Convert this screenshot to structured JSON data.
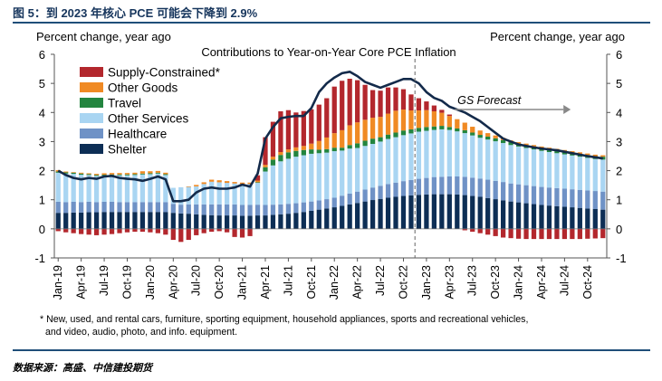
{
  "figure": {
    "title": "图 5：到 2023 年核心 PCE 可能会下降到 2.9%",
    "source": "数据来源：高盛、中信建投期货"
  },
  "colors": {
    "shelter": "#0d2e55",
    "healthcare": "#6f92c6",
    "other_services": "#a9d5f2",
    "travel": "#23853f",
    "other_goods": "#f08a24",
    "supply_constrained": "#b3272d",
    "line": "#132a4a",
    "rule": "#1f4e79"
  },
  "chart_data": {
    "type": "bar",
    "title": "Contributions to Year-on-Year Core PCE Inflation",
    "ylabel_left": "Percent change, year ago",
    "ylabel_right": "Percent change, year ago",
    "ylim": [
      -1,
      6
    ],
    "yticks": [
      "-1",
      "0",
      "1",
      "2",
      "3",
      "4",
      "5",
      "6"
    ],
    "ytick_values": [
      -1,
      0,
      1,
      2,
      3,
      4,
      5,
      6
    ],
    "xtick_labels": [
      "Jan-19",
      "Apr-19",
      "Jul-19",
      "Oct-19",
      "Jan-20",
      "Apr-20",
      "Jul-20",
      "Oct-20",
      "Jan-21",
      "Apr-21",
      "Jul-21",
      "Oct-21",
      "Jan-22",
      "Apr-22",
      "Jul-22",
      "Oct-22",
      "Jan-23",
      "Apr-23",
      "Jul-23",
      "Oct-23",
      "Jan-24",
      "Apr-24",
      "Jul-24",
      "Oct-24"
    ],
    "months": [
      "Jan-19",
      "Feb-19",
      "Mar-19",
      "Apr-19",
      "May-19",
      "Jun-19",
      "Jul-19",
      "Aug-19",
      "Sep-19",
      "Oct-19",
      "Nov-19",
      "Dec-19",
      "Jan-20",
      "Feb-20",
      "Mar-20",
      "Apr-20",
      "May-20",
      "Jun-20",
      "Jul-20",
      "Aug-20",
      "Sep-20",
      "Oct-20",
      "Nov-20",
      "Dec-20",
      "Jan-21",
      "Feb-21",
      "Mar-21",
      "Apr-21",
      "May-21",
      "Jun-21",
      "Jul-21",
      "Aug-21",
      "Sep-21",
      "Oct-21",
      "Nov-21",
      "Dec-21",
      "Jan-22",
      "Feb-22",
      "Mar-22",
      "Apr-22",
      "May-22",
      "Jun-22",
      "Jul-22",
      "Aug-22",
      "Sep-22",
      "Oct-22",
      "Nov-22",
      "Dec-22",
      "Jan-23",
      "Feb-23",
      "Mar-23",
      "Apr-23",
      "May-23",
      "Jun-23",
      "Jul-23",
      "Aug-23",
      "Sep-23",
      "Oct-23",
      "Nov-23",
      "Dec-23",
      "Jan-24",
      "Feb-24",
      "Mar-24",
      "Apr-24",
      "May-24",
      "Jun-24",
      "Jul-24",
      "Aug-24",
      "Sep-24",
      "Oct-24",
      "Nov-24",
      "Dec-24"
    ],
    "series": [
      {
        "name": "Shelter",
        "key": "shelter",
        "values": [
          0.55,
          0.55,
          0.56,
          0.56,
          0.57,
          0.57,
          0.58,
          0.58,
          0.58,
          0.58,
          0.58,
          0.58,
          0.58,
          0.58,
          0.58,
          0.55,
          0.53,
          0.52,
          0.5,
          0.48,
          0.47,
          0.46,
          0.46,
          0.46,
          0.45,
          0.45,
          0.46,
          0.46,
          0.48,
          0.5,
          0.52,
          0.55,
          0.58,
          0.62,
          0.66,
          0.7,
          0.74,
          0.79,
          0.84,
          0.89,
          0.94,
          0.99,
          1.03,
          1.07,
          1.1,
          1.13,
          1.15,
          1.17,
          1.18,
          1.19,
          1.19,
          1.19,
          1.18,
          1.16,
          1.13,
          1.1,
          1.06,
          1.02,
          0.98,
          0.94,
          0.91,
          0.88,
          0.85,
          0.82,
          0.8,
          0.78,
          0.76,
          0.74,
          0.72,
          0.7,
          0.68,
          0.66
        ]
      },
      {
        "name": "Healthcare",
        "key": "healthcare",
        "values": [
          0.38,
          0.37,
          0.37,
          0.36,
          0.36,
          0.35,
          0.35,
          0.35,
          0.34,
          0.34,
          0.34,
          0.34,
          0.34,
          0.34,
          0.34,
          0.31,
          0.3,
          0.32,
          0.34,
          0.36,
          0.37,
          0.38,
          0.38,
          0.38,
          0.37,
          0.37,
          0.37,
          0.36,
          0.35,
          0.34,
          0.34,
          0.33,
          0.33,
          0.32,
          0.32,
          0.32,
          0.33,
          0.35,
          0.37,
          0.39,
          0.41,
          0.43,
          0.45,
          0.47,
          0.49,
          0.51,
          0.53,
          0.55,
          0.57,
          0.59,
          0.6,
          0.61,
          0.62,
          0.63,
          0.63,
          0.63,
          0.63,
          0.63,
          0.63,
          0.62,
          0.62,
          0.62,
          0.62,
          0.62,
          0.62,
          0.62,
          0.62,
          0.62,
          0.62,
          0.62,
          0.62,
          0.62
        ]
      },
      {
        "name": "Other Services",
        "key": "other_services",
        "values": [
          1.0,
          0.98,
          0.96,
          0.94,
          0.92,
          0.9,
          0.9,
          0.91,
          0.92,
          0.92,
          0.93,
          0.95,
          0.96,
          0.98,
          0.93,
          0.55,
          0.6,
          0.6,
          0.62,
          0.7,
          0.78,
          0.76,
          0.74,
          0.72,
          0.72,
          0.72,
          0.75,
          1.15,
          1.35,
          1.48,
          1.55,
          1.6,
          1.62,
          1.64,
          1.62,
          1.6,
          1.6,
          1.55,
          1.55,
          1.5,
          1.5,
          1.5,
          1.52,
          1.55,
          1.56,
          1.58,
          1.6,
          1.62,
          1.62,
          1.62,
          1.63,
          1.6,
          1.55,
          1.5,
          1.45,
          1.4,
          1.38,
          1.36,
          1.34,
          1.32,
          1.3,
          1.28,
          1.26,
          1.24,
          1.22,
          1.2,
          1.18,
          1.16,
          1.14,
          1.12,
          1.1,
          1.1
        ]
      },
      {
        "name": "Travel",
        "key": "travel",
        "values": [
          0.04,
          0.04,
          0.04,
          0.04,
          0.03,
          0.03,
          0.03,
          0.03,
          0.03,
          0.03,
          0.03,
          0.03,
          0.03,
          0.03,
          0.03,
          0.0,
          0.0,
          0.0,
          0.0,
          0.0,
          0.0,
          0.0,
          0.0,
          0.0,
          0.0,
          0.0,
          0.02,
          0.15,
          0.2,
          0.22,
          0.22,
          0.2,
          0.18,
          0.15,
          0.12,
          0.12,
          0.12,
          0.1,
          0.12,
          0.16,
          0.18,
          0.18,
          0.15,
          0.15,
          0.16,
          0.16,
          0.14,
          0.13,
          0.13,
          0.12,
          0.12,
          0.1,
          0.1,
          0.1,
          0.1,
          0.1,
          0.1,
          0.1,
          0.1,
          0.1,
          0.1,
          0.1,
          0.1,
          0.1,
          0.1,
          0.1,
          0.1,
          0.1,
          0.1,
          0.1,
          0.1,
          0.1
        ]
      },
      {
        "name": "Other Goods",
        "key": "other_goods",
        "values": [
          0.05,
          0.03,
          0.02,
          0.03,
          0.03,
          0.04,
          0.05,
          0.05,
          0.05,
          0.05,
          0.05,
          0.08,
          0.07,
          0.06,
          0.05,
          0.0,
          0.0,
          0.02,
          0.05,
          0.06,
          0.07,
          0.07,
          0.06,
          0.05,
          0.05,
          0.05,
          0.06,
          0.08,
          0.1,
          0.1,
          0.1,
          0.12,
          0.14,
          0.2,
          0.3,
          0.4,
          0.5,
          0.6,
          0.68,
          0.72,
          0.72,
          0.72,
          0.7,
          0.72,
          0.75,
          0.72,
          0.65,
          0.6,
          0.58,
          0.52,
          0.45,
          0.38,
          0.32,
          0.26,
          0.2,
          0.15,
          0.12,
          0.1,
          0.08,
          0.06,
          0.05,
          0.05,
          0.05,
          0.05,
          0.05,
          0.05,
          0.05,
          0.05,
          0.05,
          0.05,
          0.05,
          0.05
        ]
      },
      {
        "name": "Supply-Constrained",
        "key": "supply_constrained",
        "values": [
          -0.08,
          -0.12,
          -0.15,
          -0.18,
          -0.2,
          -0.22,
          -0.2,
          -0.18,
          -0.15,
          -0.12,
          -0.1,
          -0.1,
          -0.12,
          -0.15,
          -0.2,
          -0.38,
          -0.45,
          -0.38,
          -0.22,
          -0.15,
          -0.1,
          -0.08,
          -0.12,
          -0.28,
          -0.3,
          -0.25,
          0.18,
          0.95,
          1.2,
          1.4,
          1.35,
          1.2,
          1.2,
          1.18,
          1.25,
          1.35,
          1.6,
          1.7,
          1.6,
          1.45,
          1.2,
          0.95,
          0.9,
          0.9,
          0.8,
          0.7,
          0.55,
          0.42,
          0.3,
          0.2,
          0.1,
          0.05,
          0.0,
          -0.05,
          -0.1,
          -0.15,
          -0.2,
          -0.25,
          -0.3,
          -0.32,
          -0.34,
          -0.35,
          -0.35,
          -0.35,
          -0.35,
          -0.35,
          -0.35,
          -0.35,
          -0.35,
          -0.34,
          -0.33,
          -0.32
        ]
      }
    ],
    "line": {
      "name": "Core PCE",
      "values": [
        2.0,
        1.85,
        1.75,
        1.7,
        1.75,
        1.72,
        1.8,
        1.82,
        1.75,
        1.72,
        1.7,
        1.65,
        1.72,
        1.8,
        1.7,
        0.95,
        0.95,
        1.0,
        1.25,
        1.38,
        1.42,
        1.38,
        1.38,
        1.42,
        1.52,
        1.45,
        1.9,
        3.1,
        3.5,
        3.8,
        3.85,
        3.88,
        3.88,
        4.15,
        4.7,
        5.0,
        5.2,
        5.35,
        5.4,
        5.25,
        5.05,
        4.95,
        4.85,
        4.95,
        5.05,
        5.15,
        5.15,
        5.0,
        4.7,
        4.5,
        4.4,
        4.2,
        4.1,
        4.0,
        3.85,
        3.7,
        3.5,
        3.3,
        3.1,
        3.0,
        2.9,
        2.85,
        2.8,
        2.76,
        2.73,
        2.7,
        2.65,
        2.6,
        2.55,
        2.5,
        2.46,
        2.42
      ]
    },
    "annotations": {
      "forecast_label": "GS Forecast",
      "forecast_start_month": "Dec-22"
    },
    "footnote": "* New, used, and rental cars, furniture, sporting equipment, household appliances, sports and recreational vehicles, and video, audio, photo, and info. equipment.",
    "legend": {
      "position": "top-left",
      "order": [
        "supply_constrained",
        "other_goods",
        "travel",
        "other_services",
        "healthcare",
        "shelter"
      ],
      "labels": {
        "supply_constrained": "Supply-Constrained*",
        "other_goods": "Other Goods",
        "travel": "Travel",
        "other_services": "Other Services",
        "healthcare": "Healthcare",
        "shelter": "Shelter"
      }
    }
  }
}
